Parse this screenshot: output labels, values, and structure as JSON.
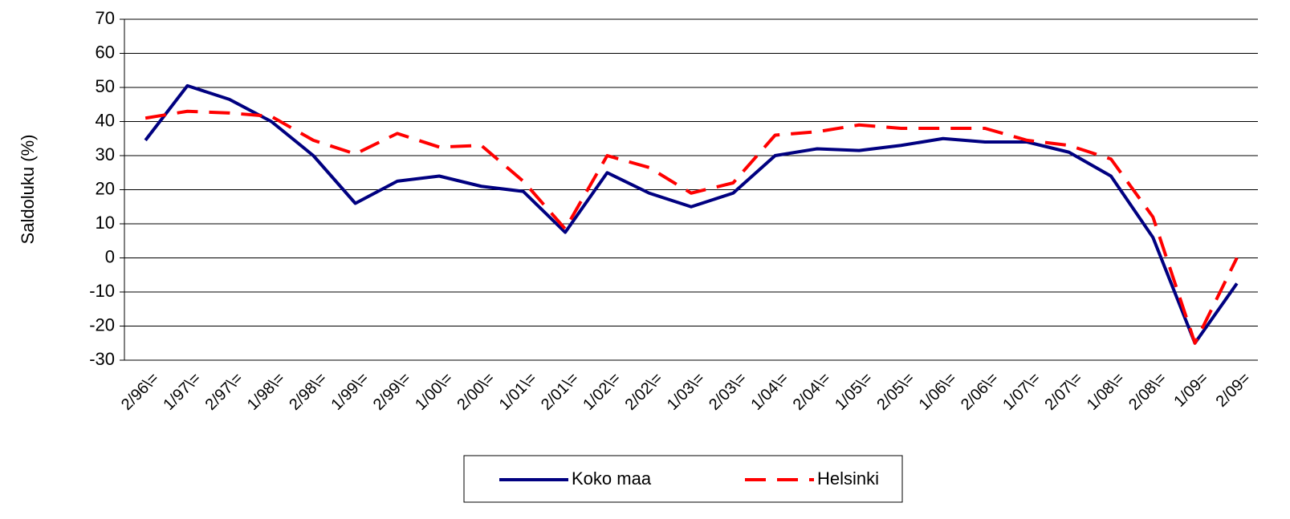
{
  "chart_data": {
    "type": "line",
    "y_label": "Saldoluku (%)",
    "categories": [
      "2/96\\=",
      "1/97\\=",
      "2/97\\=",
      "1/98\\=",
      "2/98\\=",
      "1/99\\=",
      "2/99\\=",
      "1/00\\=",
      "2/00\\=",
      "1/01\\=",
      "2/01\\=",
      "1/02\\=",
      "2/02\\=",
      "1/03\\=",
      "2/03\\=",
      "1/04\\=",
      "2/04\\=",
      "1/05\\=",
      "2/05\\=",
      "1/06\\=",
      "2/06\\=",
      "1/07\\=",
      "2/07\\=",
      "1/08\\=",
      "2/08\\=",
      "1/09=",
      "2/09="
    ],
    "series": [
      {
        "name": "Koko maa",
        "color": "#000080",
        "dash": "solid",
        "values": [
          34.5,
          50.5,
          46.5,
          40,
          30,
          16,
          22.5,
          24,
          21,
          19.5,
          7.5,
          25,
          19,
          15,
          19,
          30,
          32,
          31.5,
          33,
          35,
          34,
          34,
          31,
          24,
          6,
          -25,
          -7.5
        ]
      },
      {
        "name": "Helsinki",
        "color": "#ff0000",
        "dash": "dashed",
        "values": [
          41,
          43,
          42.5,
          41.5,
          34.5,
          30.5,
          36.5,
          32.5,
          33,
          22.5,
          8.5,
          30,
          26.5,
          19,
          22,
          36,
          37,
          39,
          38,
          38,
          38,
          34.5,
          33,
          29,
          12,
          -25,
          0
        ]
      }
    ],
    "ylim": [
      -30,
      70
    ],
    "yticks": [
      -30,
      -20,
      -10,
      0,
      10,
      20,
      30,
      40,
      50,
      60,
      70
    ],
    "grid": true,
    "legend": "bottom"
  }
}
